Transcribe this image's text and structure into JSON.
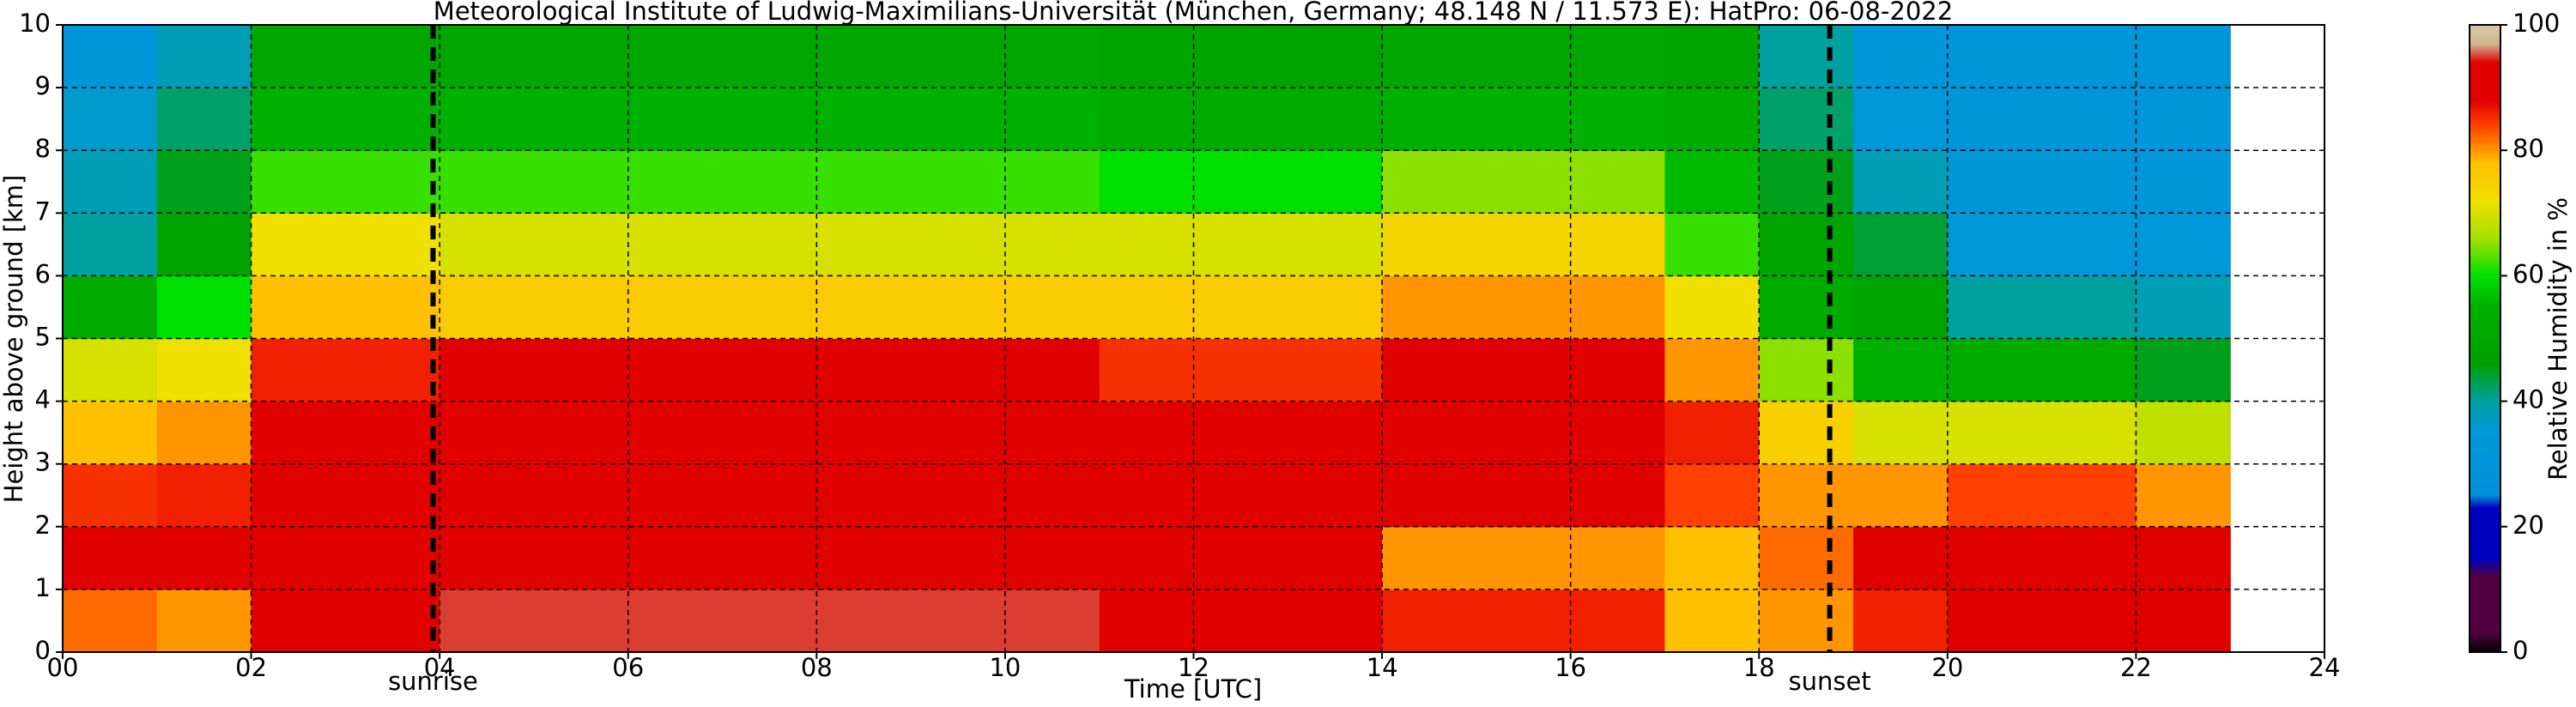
{
  "chart_data": {
    "type": "heatmap",
    "title": "Meteorological Institute of Ludwig-Maximilians-Universität (München, Germany; 48.148 N / 11.573 E):    HatPro: 06-08-2022",
    "x_label": "Time [UTC]",
    "y_label": "Height above ground [km]",
    "colorbar_label": "Relative Humidity in %",
    "x": [
      0.5,
      1.5,
      2.5,
      3.5,
      4.5,
      5.5,
      6.5,
      7.5,
      8.5,
      9.5,
      10.5,
      11.5,
      12.5,
      13.5,
      14.5,
      15.5,
      16.5,
      17.5,
      18.5,
      19.5,
      20.5,
      21.5,
      22.5
    ],
    "y": [
      0.5,
      1.5,
      2.5,
      3.5,
      4.5,
      5.5,
      6.5,
      7.5,
      8.5,
      9.5
    ],
    "z": [
      [
        82,
        80,
        92,
        92,
        95,
        95,
        95,
        95,
        95,
        95,
        95,
        90,
        90,
        90,
        86,
        86,
        86,
        78,
        80,
        86,
        88,
        88,
        90
      ],
      [
        88,
        88,
        94,
        94,
        93,
        93,
        93,
        93,
        93,
        93,
        93,
        90,
        90,
        90,
        80,
        80,
        80,
        78,
        82,
        88,
        90,
        90,
        88
      ],
      [
        85,
        86,
        92,
        92,
        91,
        91,
        91,
        91,
        91,
        91,
        91,
        90,
        90,
        90,
        88,
        88,
        88,
        84,
        80,
        80,
        84,
        84,
        80
      ],
      [
        78,
        80,
        90,
        90,
        90,
        90,
        90,
        90,
        90,
        90,
        90,
        89,
        89,
        89,
        89,
        89,
        89,
        86,
        75,
        70,
        70,
        70,
        68
      ],
      [
        70,
        72,
        86,
        86,
        88,
        88,
        88,
        88,
        88,
        88,
        88,
        85,
        85,
        85,
        88,
        88,
        88,
        80,
        65,
        55,
        52,
        52,
        45
      ],
      [
        52,
        60,
        78,
        78,
        76,
        76,
        76,
        76,
        76,
        76,
        76,
        76,
        76,
        76,
        80,
        80,
        80,
        72,
        52,
        48,
        40,
        40,
        38
      ],
      [
        40,
        48,
        72,
        72,
        70,
        70,
        70,
        70,
        70,
        70,
        70,
        70,
        70,
        70,
        74,
        74,
        74,
        62,
        48,
        44,
        35,
        35,
        35
      ],
      [
        38,
        45,
        62,
        62,
        62,
        62,
        62,
        62,
        62,
        62,
        62,
        60,
        60,
        60,
        65,
        65,
        65,
        56,
        45,
        38,
        34,
        34,
        33
      ],
      [
        36,
        42,
        55,
        55,
        55,
        55,
        55,
        55,
        55,
        55,
        55,
        52,
        52,
        52,
        55,
        55,
        55,
        52,
        42,
        35,
        33,
        33,
        32
      ],
      [
        33,
        38,
        50,
        50,
        50,
        50,
        50,
        50,
        50,
        50,
        50,
        48,
        48,
        48,
        50,
        50,
        50,
        48,
        40,
        33,
        33,
        33,
        30
      ]
    ],
    "xlim": [
      0,
      24
    ],
    "xticks": [
      {
        "value": 0,
        "label": "00"
      },
      {
        "value": 2,
        "label": "02"
      },
      {
        "value": 4,
        "label": "04"
      },
      {
        "value": 6,
        "label": "06"
      },
      {
        "value": 8,
        "label": "08"
      },
      10,
      12,
      14,
      16,
      18,
      20,
      22,
      24
    ],
    "ylim": [
      0,
      10
    ],
    "yticks": [
      0,
      1,
      2,
      3,
      4,
      5,
      6,
      7,
      8,
      9,
      10
    ],
    "zlim": [
      0,
      100
    ],
    "zticks": [
      0,
      20,
      40,
      60,
      80,
      100
    ],
    "colormap": [
      [
        0,
        "#000000"
      ],
      [
        3,
        "#500040"
      ],
      [
        12,
        "#500040"
      ],
      [
        15,
        "#0000c0"
      ],
      [
        23,
        "#0000c0"
      ],
      [
        25,
        "#0090dc"
      ],
      [
        35,
        "#0098d8"
      ],
      [
        40,
        "#00a0a0"
      ],
      [
        46,
        "#00a000"
      ],
      [
        55,
        "#00b000"
      ],
      [
        60,
        "#00e000"
      ],
      [
        66,
        "#a8e000"
      ],
      [
        72,
        "#f0e000"
      ],
      [
        78,
        "#ffc000"
      ],
      [
        84,
        "#ff4000"
      ],
      [
        88,
        "#e00000"
      ],
      [
        94,
        "#e00000"
      ],
      [
        97,
        "#d0b890"
      ],
      [
        100,
        "#d8c8a8"
      ]
    ],
    "grid": true,
    "annotations": [
      {
        "x": 3.93,
        "label": "sunrise"
      },
      {
        "x": 18.75,
        "label": "sunset"
      }
    ]
  }
}
